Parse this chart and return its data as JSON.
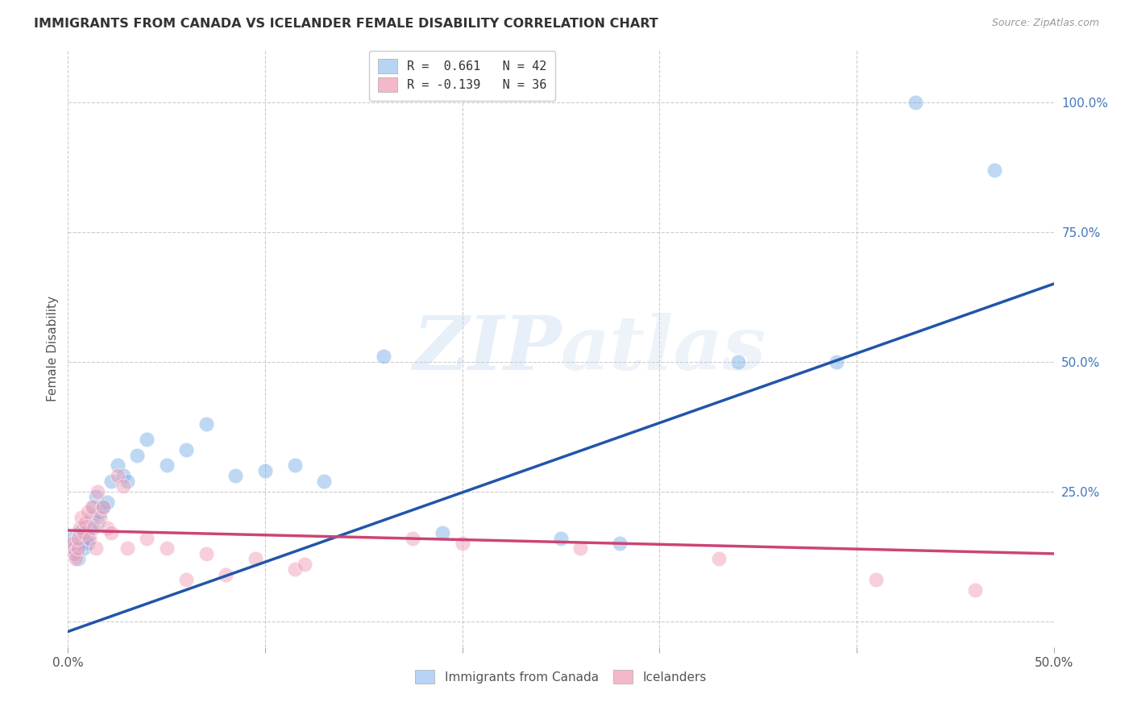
{
  "title": "IMMIGRANTS FROM CANADA VS ICELANDER FEMALE DISABILITY CORRELATION CHART",
  "source": "Source: ZipAtlas.com",
  "ylabel": "Female Disability",
  "xlim": [
    0.0,
    0.5
  ],
  "ylim": [
    -0.05,
    1.1
  ],
  "xticks": [
    0.0,
    0.1,
    0.2,
    0.3,
    0.4,
    0.5
  ],
  "xtick_labels": [
    "0.0%",
    "",
    "",
    "",
    "",
    "50.0%"
  ],
  "yticks": [
    0.0,
    0.25,
    0.5,
    0.75,
    1.0
  ],
  "ytick_labels": [
    "",
    "25.0%",
    "50.0%",
    "75.0%",
    "100.0%"
  ],
  "legend_label1": "R =  0.661   N = 42",
  "legend_label2": "R = -0.139   N = 36",
  "legend_color1": "#b8d4f5",
  "legend_color2": "#f5b8c8",
  "color_blue": "#7EB0E8",
  "color_pink": "#F0A0B8",
  "line_color_blue": "#2255AA",
  "line_color_pink": "#CC4477",
  "watermark_text": "ZIPatlas",
  "blue_x": [
    0.002,
    0.003,
    0.004,
    0.005,
    0.006,
    0.006,
    0.007,
    0.007,
    0.008,
    0.008,
    0.009,
    0.01,
    0.01,
    0.011,
    0.012,
    0.013,
    0.014,
    0.015,
    0.016,
    0.018,
    0.02,
    0.022,
    0.025,
    0.028,
    0.03,
    0.035,
    0.04,
    0.05,
    0.06,
    0.07,
    0.085,
    0.1,
    0.115,
    0.13,
    0.16,
    0.19,
    0.25,
    0.28,
    0.34,
    0.43,
    0.39,
    0.47
  ],
  "blue_y": [
    0.16,
    0.14,
    0.13,
    0.12,
    0.15,
    0.17,
    0.16,
    0.15,
    0.14,
    0.18,
    0.17,
    0.16,
    0.15,
    0.18,
    0.2,
    0.22,
    0.24,
    0.19,
    0.21,
    0.22,
    0.23,
    0.27,
    0.3,
    0.28,
    0.27,
    0.32,
    0.35,
    0.3,
    0.33,
    0.38,
    0.28,
    0.29,
    0.3,
    0.27,
    0.51,
    0.17,
    0.16,
    0.15,
    0.5,
    1.0,
    0.5,
    0.87
  ],
  "pink_x": [
    0.002,
    0.003,
    0.004,
    0.005,
    0.005,
    0.006,
    0.007,
    0.008,
    0.009,
    0.01,
    0.011,
    0.012,
    0.013,
    0.014,
    0.015,
    0.016,
    0.018,
    0.02,
    0.022,
    0.025,
    0.028,
    0.03,
    0.04,
    0.05,
    0.06,
    0.07,
    0.08,
    0.095,
    0.115,
    0.12,
    0.175,
    0.2,
    0.26,
    0.33,
    0.41,
    0.46
  ],
  "pink_y": [
    0.15,
    0.13,
    0.12,
    0.14,
    0.16,
    0.18,
    0.2,
    0.17,
    0.19,
    0.21,
    0.16,
    0.22,
    0.18,
    0.14,
    0.25,
    0.2,
    0.22,
    0.18,
    0.17,
    0.28,
    0.26,
    0.14,
    0.16,
    0.14,
    0.08,
    0.13,
    0.09,
    0.12,
    0.1,
    0.11,
    0.16,
    0.15,
    0.14,
    0.12,
    0.08,
    0.06
  ],
  "blue_line_x": [
    0.0,
    0.5
  ],
  "blue_line_y": [
    -0.02,
    0.65
  ],
  "pink_line_x": [
    0.0,
    0.5
  ],
  "pink_line_y": [
    0.175,
    0.13
  ]
}
